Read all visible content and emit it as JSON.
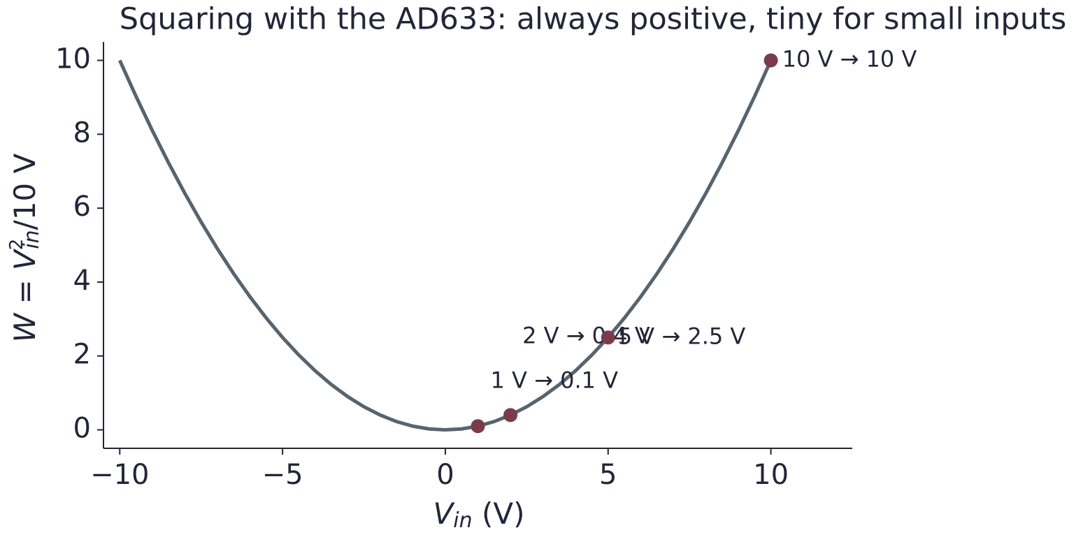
{
  "chart_data": {
    "type": "line",
    "title": "Squaring with the AD633: always positive, tiny for small inputs",
    "x_label": {
      "var": "V",
      "sub": "in",
      "rest": " (V)"
    },
    "y_label": {
      "lhs": "W = V",
      "sup": "2",
      "sub": "in",
      "rest": "/10 V"
    },
    "x": [
      -10,
      -9.5,
      -9,
      -8.5,
      -8,
      -7.5,
      -7,
      -6.5,
      -6,
      -5.5,
      -5,
      -4.5,
      -4,
      -3.5,
      -3,
      -2.5,
      -2,
      -1.5,
      -1,
      -0.5,
      0,
      0.5,
      1,
      1.5,
      2,
      2.5,
      3,
      3.5,
      4,
      4.5,
      5,
      5.5,
      6,
      6.5,
      7,
      7.5,
      8,
      8.5,
      9,
      9.5,
      10
    ],
    "series": [
      {
        "color": "#56646f",
        "values": [
          10,
          9.025,
          8.1,
          7.225,
          6.4,
          5.625,
          4.9,
          4.225,
          3.6,
          3.025,
          2.5,
          2.025,
          1.6,
          1.225,
          0.9,
          0.625,
          0.4,
          0.225,
          0.1,
          0.025,
          0,
          0.025,
          0.1,
          0.225,
          0.4,
          0.625,
          0.9,
          1.225,
          1.6,
          2.025,
          2.5,
          3.025,
          3.6,
          4.225,
          4.9,
          5.625,
          6.4,
          7.225,
          8.1,
          9.025,
          10
        ]
      }
    ],
    "points": {
      "color": "#7b3b4b",
      "x": [
        1,
        2,
        5,
        10
      ],
      "values": [
        0.1,
        0.4,
        2.5,
        10
      ],
      "labels": [
        "1 V → 0.1 V",
        "2 V → 0.4 V",
        "5 V → 2.5 V",
        "10 V → 10 V"
      ]
    },
    "xlim": [
      -10.5,
      12.5
    ],
    "ylim": [
      -0.5,
      10.5
    ],
    "xticks": [
      {
        "value": -10,
        "label": "−10"
      },
      {
        "value": -5,
        "label": "−5"
      },
      0,
      5,
      10
    ],
    "yticks": [
      0,
      2,
      4,
      6,
      8,
      10
    ],
    "grid": false
  }
}
